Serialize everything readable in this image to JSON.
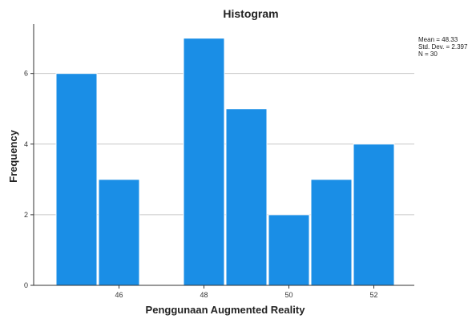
{
  "chart_data": {
    "type": "bar",
    "title": "Histogram",
    "xlabel": "Penggunaan Augmented Reality",
    "ylabel": "Frequency",
    "bin_width": 1,
    "bins": [
      {
        "center": 45,
        "value": 6
      },
      {
        "center": 46,
        "value": 3
      },
      {
        "center": 47,
        "value": 0
      },
      {
        "center": 48,
        "value": 7
      },
      {
        "center": 49,
        "value": 5
      },
      {
        "center": 50,
        "value": 2
      },
      {
        "center": 51,
        "value": 3
      },
      {
        "center": 52,
        "value": 4
      }
    ],
    "x_ticks": [
      "46",
      "48",
      "50",
      "52"
    ],
    "x_tick_values": [
      46,
      48,
      50,
      52
    ],
    "y_ticks": [
      "0",
      "2",
      "4",
      "6"
    ],
    "y_tick_values": [
      0,
      2,
      4,
      6
    ],
    "ylim": [
      0,
      7.4
    ],
    "xlim": [
      44.5,
      52.5
    ],
    "grid": "horizontal",
    "bar_color": "#1a8ee6",
    "bar_edge_color": "#ffffff",
    "stats": {
      "mean": "Mean = 48.33",
      "std_dev": "Std. Dev. = 2.397",
      "n": "N = 30"
    }
  }
}
